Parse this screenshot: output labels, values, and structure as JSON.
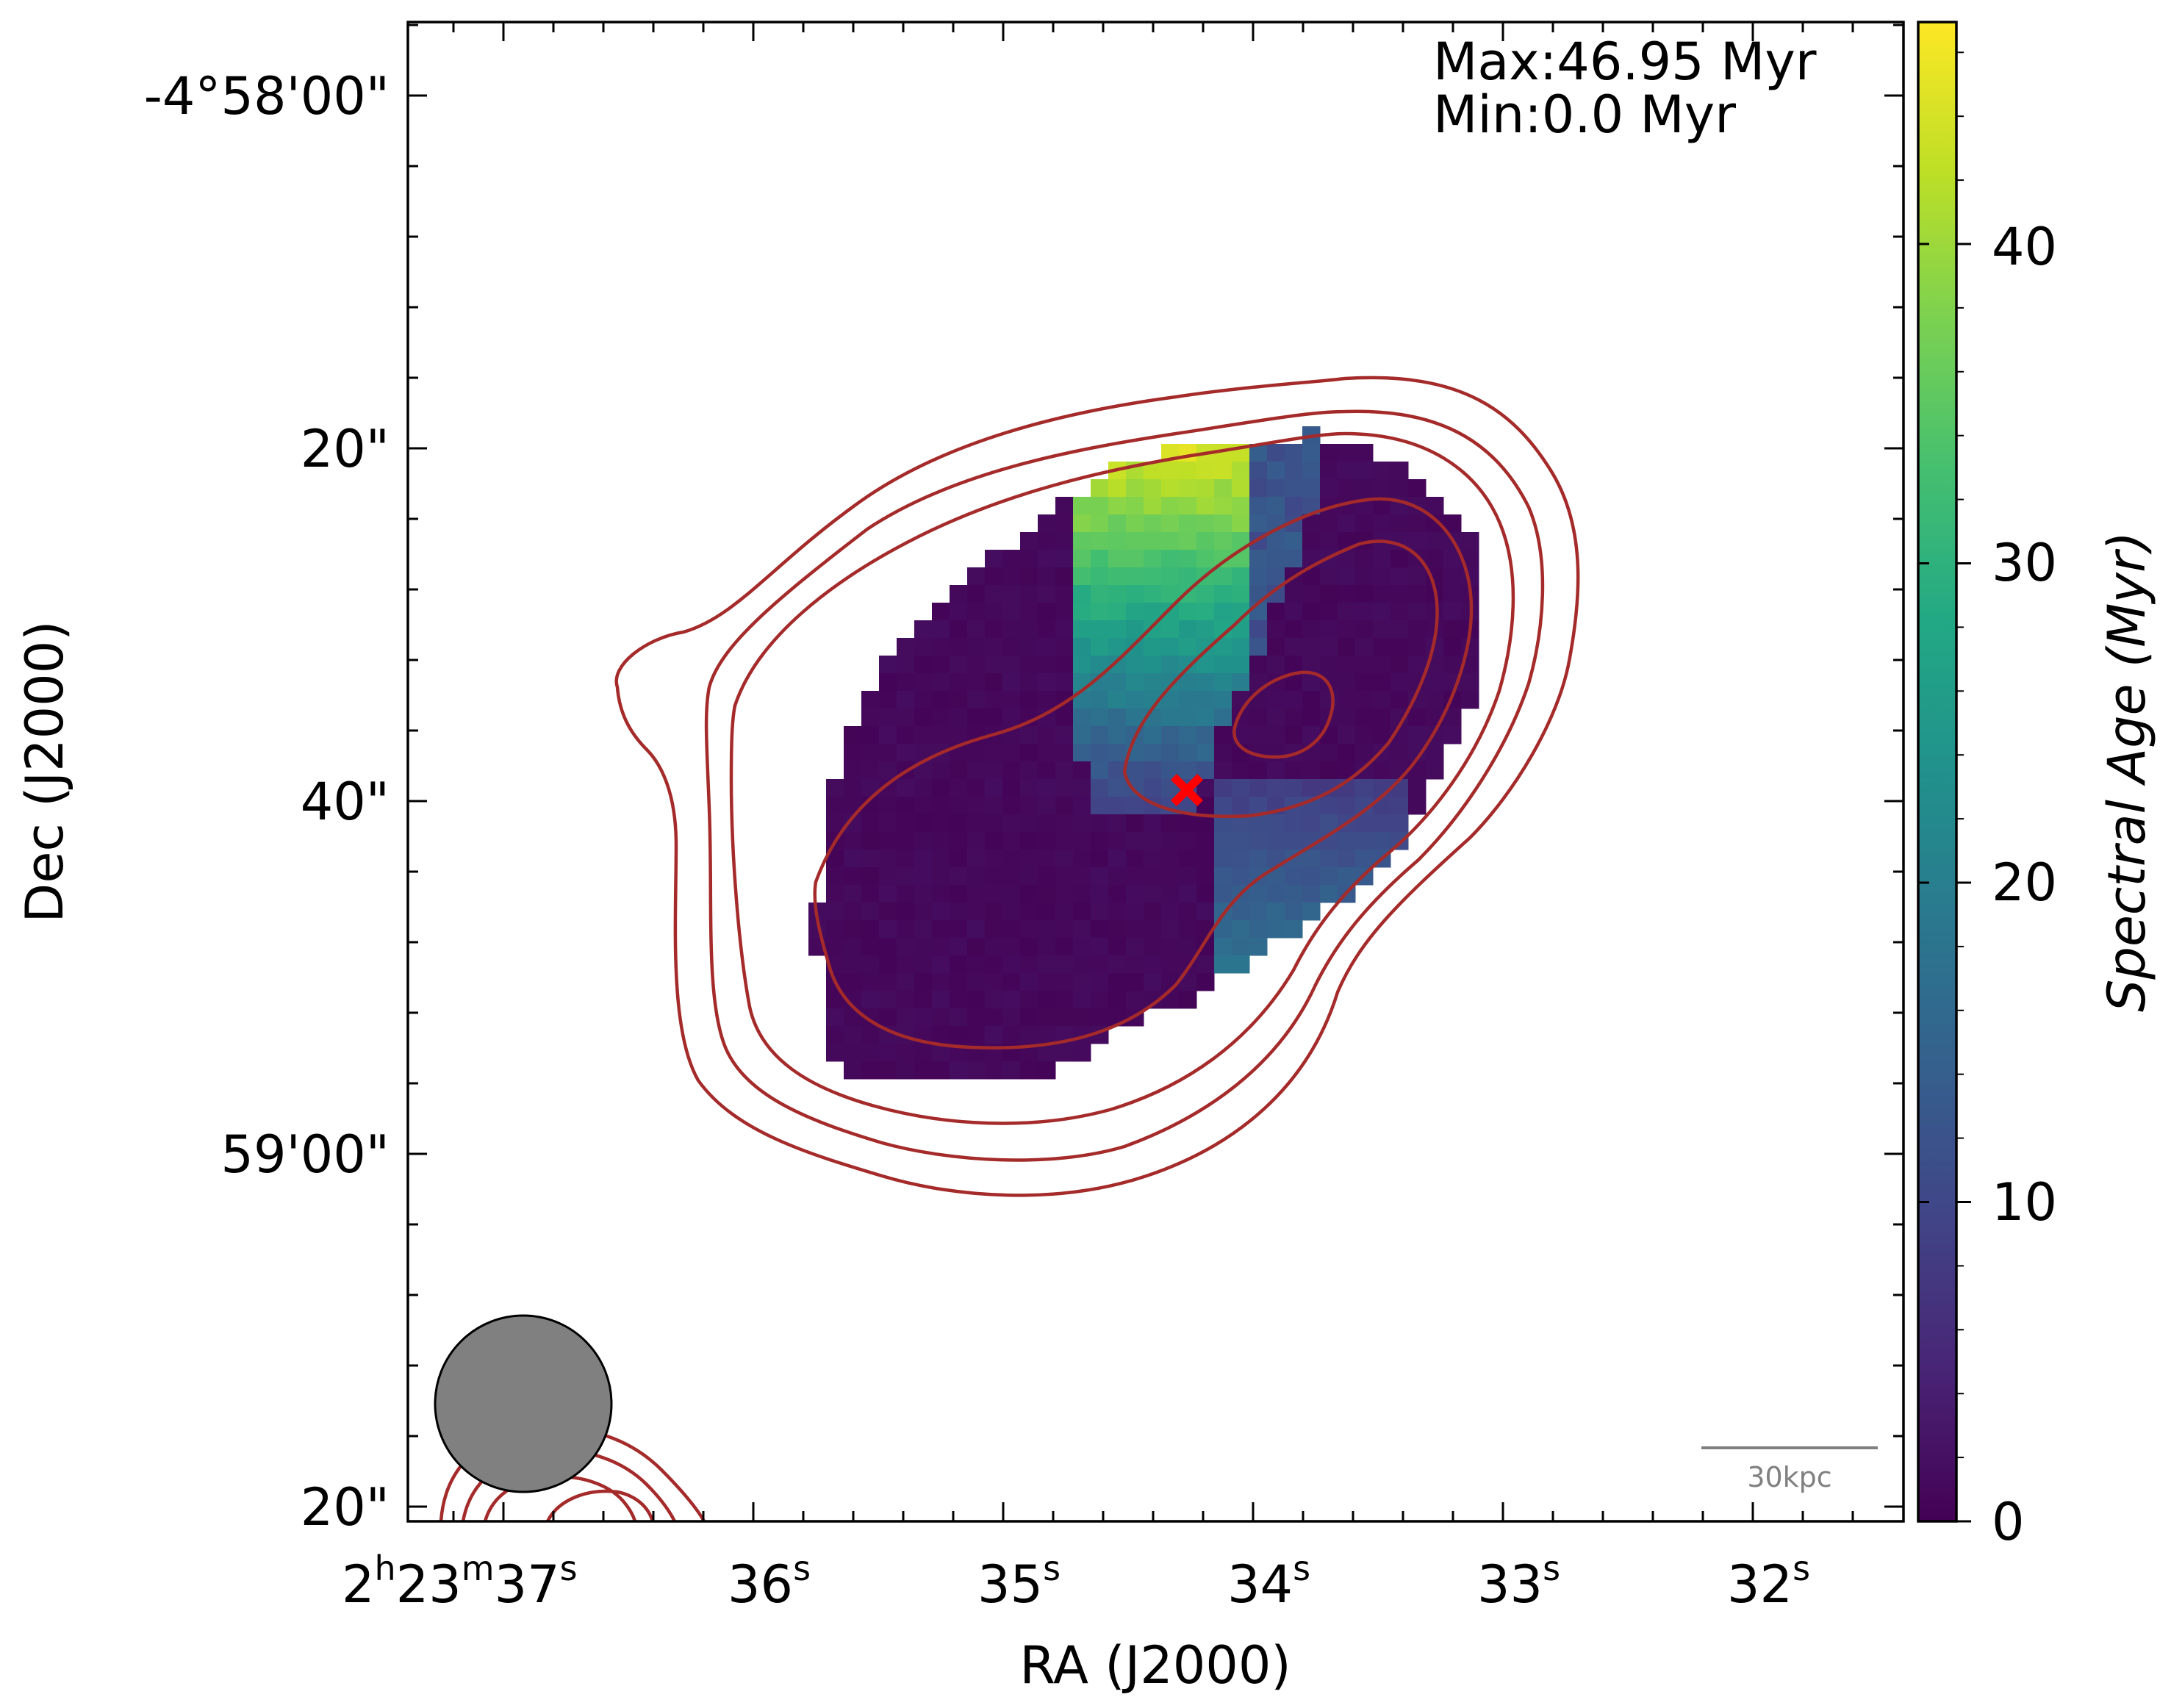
{
  "chart_data": {
    "type": "heatmap",
    "title": "",
    "xlabel": "RA (J2000)",
    "ylabel": "Dec (J2000)",
    "x_ticks": [
      {
        "value_s": 37,
        "label": "2h23m37s"
      },
      {
        "value_s": 36,
        "label": "36s"
      },
      {
        "value_s": 35,
        "label": "35s"
      },
      {
        "value_s": 34,
        "label": "34s"
      },
      {
        "value_s": 33,
        "label": "33s"
      },
      {
        "value_s": 32,
        "label": "32s"
      }
    ],
    "x_tick_parts": {
      "deg": "2",
      "h": "h",
      "m_val": "23",
      "m": "m",
      "s_val": "37",
      "s": "s"
    },
    "x_tick_main": [
      "36",
      "35",
      "34",
      "33",
      "32"
    ],
    "y_ticks": [
      "-4°58'00\"",
      "20\"",
      "40\"",
      "59'00\"",
      "20\""
    ],
    "y_range_arcsec": [
      0,
      80
    ],
    "annotation": {
      "max": "Max:46.95 Myr",
      "min": "Min:0.0 Myr"
    },
    "colorbar": {
      "label": "Spectral Age (Myr)",
      "range": [
        0,
        46.95
      ],
      "ticks": [
        "0",
        "10",
        "20",
        "30",
        "40"
      ],
      "colormap": "viridis"
    },
    "scalebar": "30kpc",
    "beam": "circular restoring beam",
    "core_marker": "red cross",
    "contour_levels": 5,
    "contour_color": "#a52a2a",
    "map_description": {
      "background_age_myr": 0.5,
      "bright_region_age_myr": [
        10,
        46.95
      ],
      "regions": [
        {
          "name": "north-lobe-old",
          "age_range": [
            20,
            46.95
          ]
        },
        {
          "name": "south-east-lobe-mid",
          "age_range": [
            8,
            18
          ]
        }
      ]
    }
  },
  "colors": {
    "contour": "#a52a2a",
    "core": "#ff0000",
    "beam": "#808080",
    "scalebar": "#808080"
  }
}
